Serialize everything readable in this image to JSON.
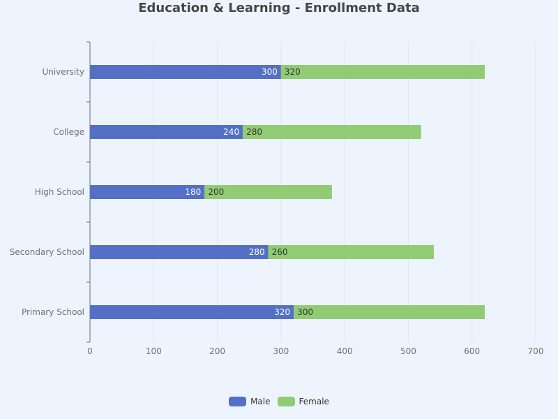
{
  "chart_data": {
    "type": "bar",
    "orientation": "horizontal",
    "stacked": true,
    "title": "Education & Learning - Enrollment Data",
    "categories": [
      "University",
      "College",
      "High School",
      "Secondary School",
      "Primary School"
    ],
    "series": [
      {
        "name": "Male",
        "color": "#5470c6",
        "values": [
          300,
          240,
          180,
          280,
          320
        ]
      },
      {
        "name": "Female",
        "color": "#91cc75",
        "values": [
          320,
          280,
          200,
          260,
          300
        ]
      }
    ],
    "xlim": [
      0,
      700
    ],
    "x_ticks": [
      "0",
      "100",
      "200",
      "300",
      "400",
      "500",
      "600",
      "700"
    ],
    "grid": true,
    "data_labels": true,
    "legend_position": "bottom-center"
  }
}
